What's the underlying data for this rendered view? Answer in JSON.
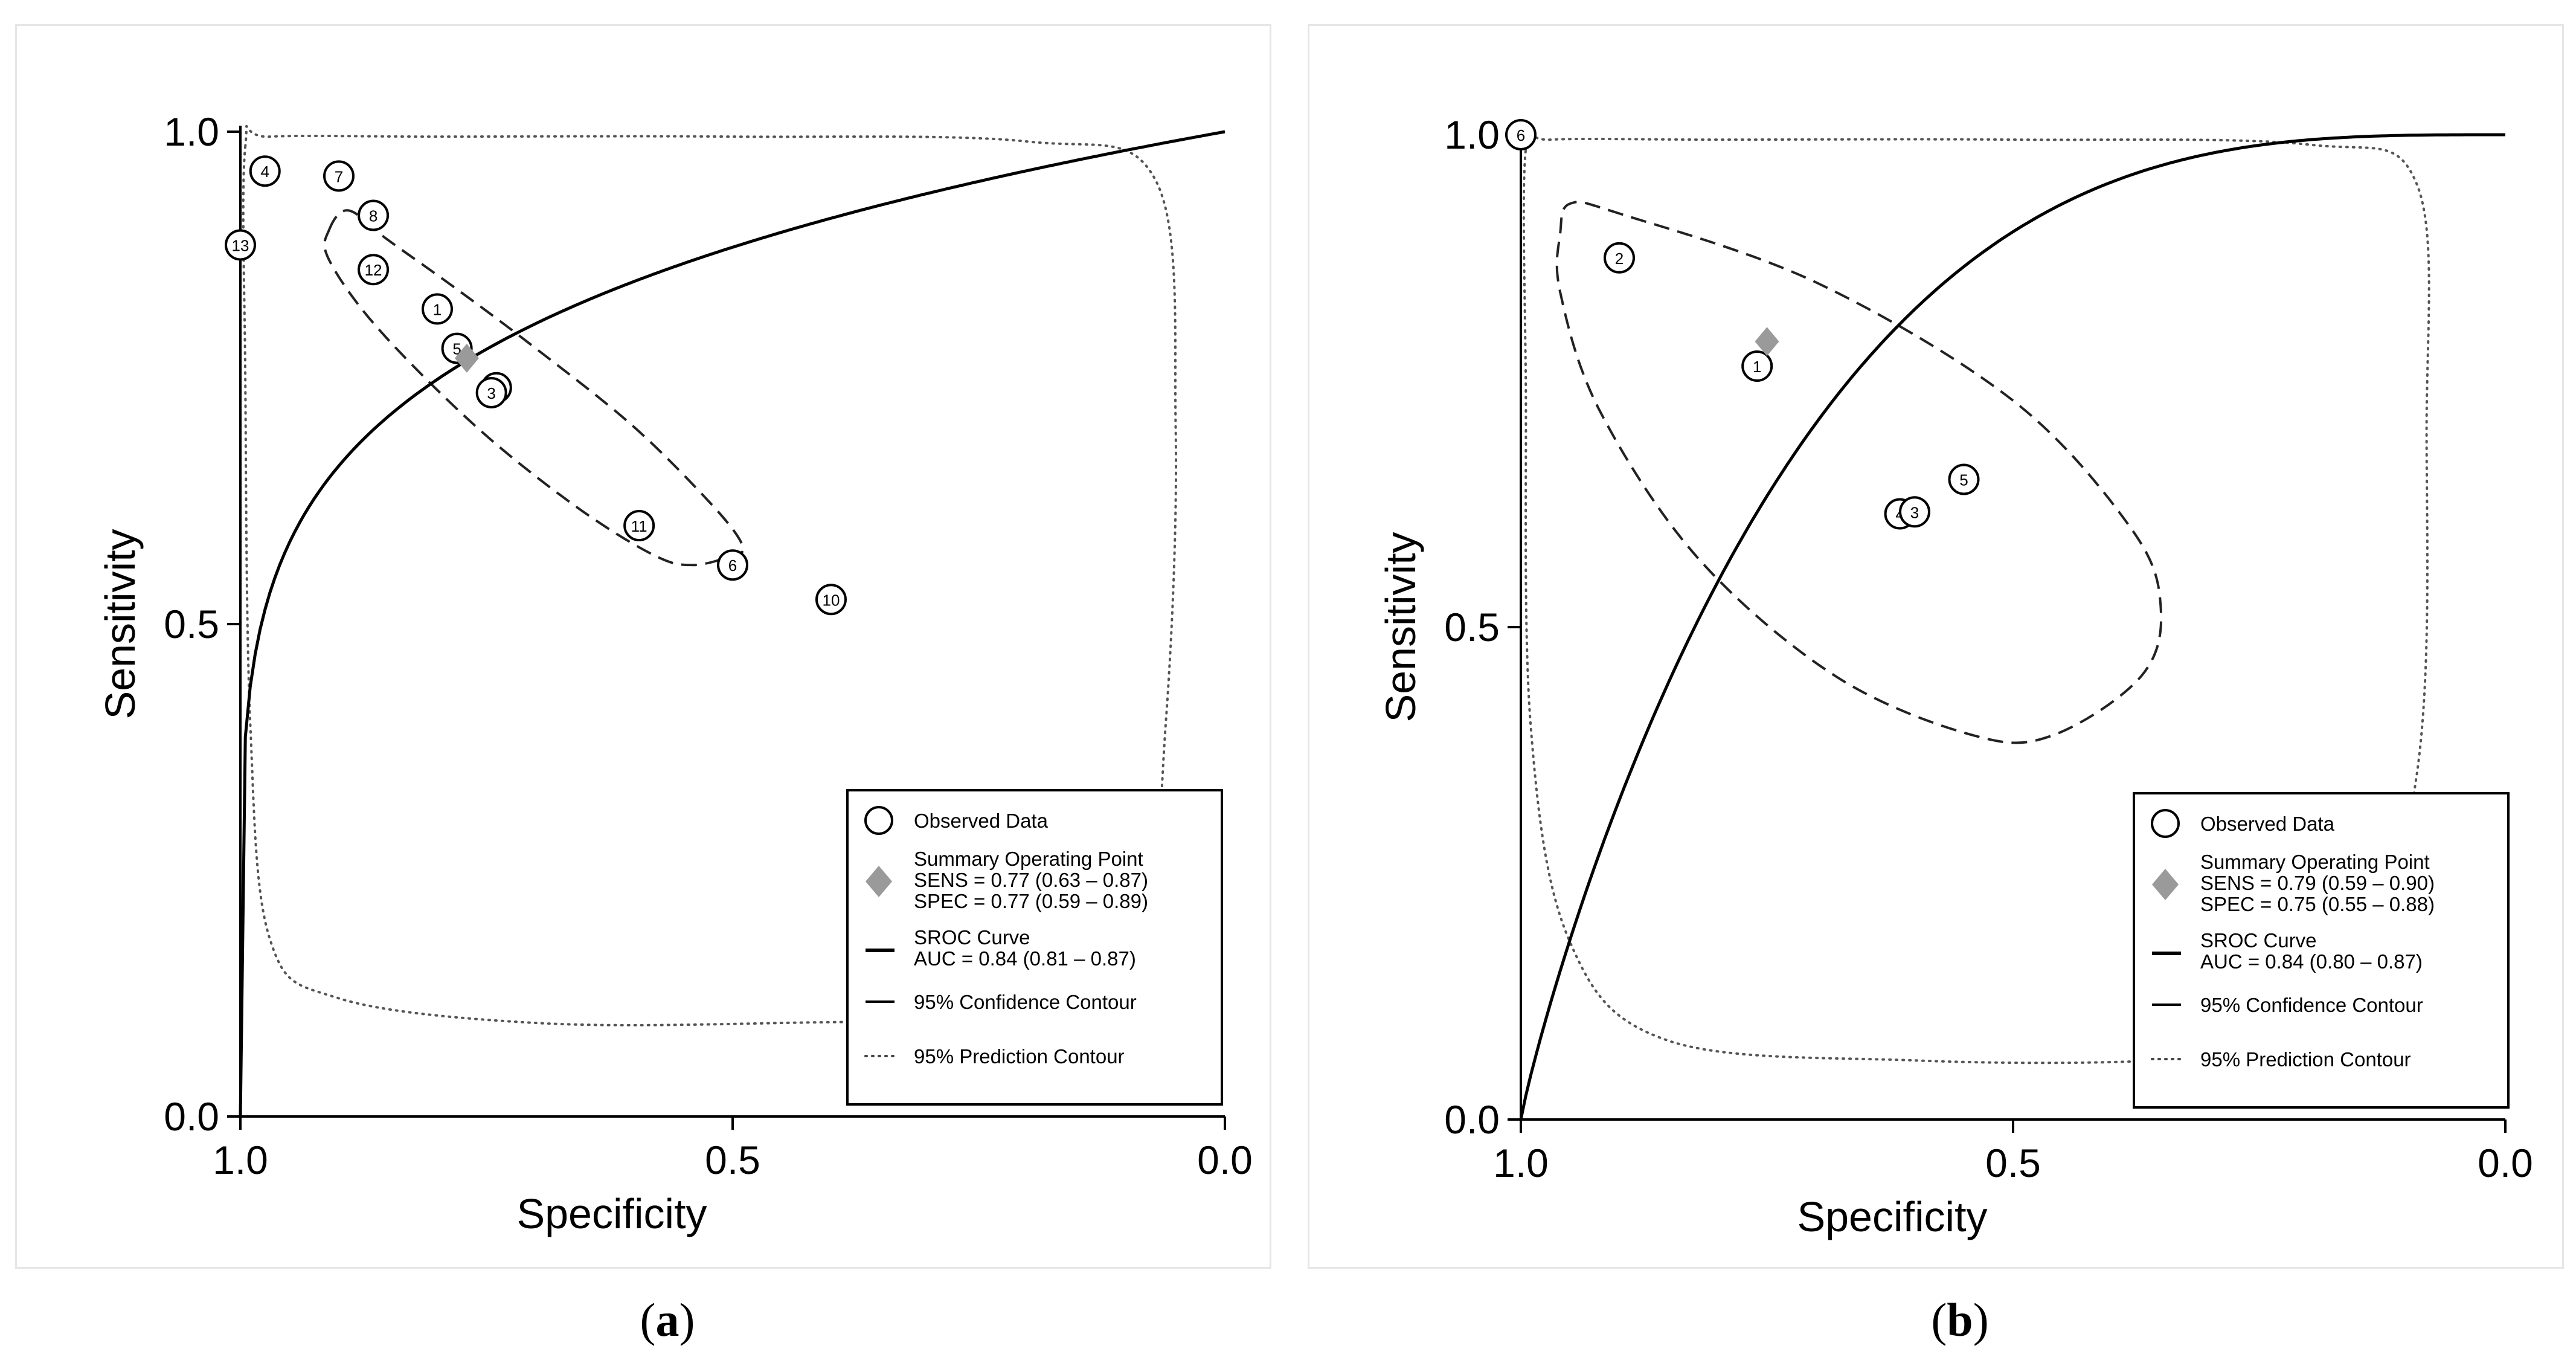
{
  "chart_data": [
    {
      "type": "scatter",
      "panel_label": "a",
      "xlabel": "Specificity",
      "ylabel": "Sensitivity",
      "xlim": [
        1.0,
        0.0
      ],
      "ylim": [
        0.0,
        1.0
      ],
      "x_ticks": [
        "1.0",
        "0.5",
        "0.0"
      ],
      "y_ticks": [
        "0.0",
        "0.5",
        "1.0"
      ],
      "points": [
        {
          "label": "1",
          "spec": 0.8,
          "sens": 0.82
        },
        {
          "label": "2",
          "spec": 0.74,
          "sens": 0.74
        },
        {
          "label": "3",
          "spec": 0.745,
          "sens": 0.735
        },
        {
          "label": "4",
          "spec": 0.975,
          "sens": 0.96
        },
        {
          "label": "5",
          "spec": 0.78,
          "sens": 0.78
        },
        {
          "label": "6",
          "spec": 0.5,
          "sens": 0.56
        },
        {
          "label": "7",
          "spec": 0.9,
          "sens": 0.955
        },
        {
          "label": "8",
          "spec": 0.865,
          "sens": 0.915
        },
        {
          "label": "10",
          "spec": 0.4,
          "sens": 0.525
        },
        {
          "label": "11",
          "spec": 0.595,
          "sens": 0.6
        },
        {
          "label": "12",
          "spec": 0.865,
          "sens": 0.86
        },
        {
          "label": "13",
          "spec": 1.0,
          "sens": 0.885
        }
      ],
      "summary_point": {
        "spec": 0.77,
        "sens": 0.77
      },
      "sroc_auc": 0.84,
      "legend": {
        "observed": "Observed Data",
        "summary_title": "Summary Operating Point",
        "sens": "SENS = 0.77 (0.63 – 0.87)",
        "spec": "SPEC = 0.77 (0.59 – 0.89)",
        "sroc_title": "SROC Curve",
        "auc": "AUC = 0.84 (0.81 – 0.87)",
        "confidence": "95% Confidence Contour",
        "prediction": "95% Prediction Contour"
      },
      "legend_position": "bottom-right",
      "caption": "a"
    },
    {
      "type": "scatter",
      "panel_label": "b",
      "xlabel": "Specificity",
      "ylabel": "Sensitivity",
      "xlim": [
        1.0,
        0.0
      ],
      "ylim": [
        0.0,
        1.0
      ],
      "x_ticks": [
        "1.0",
        "0.5",
        "0.0"
      ],
      "y_ticks": [
        "0.0",
        "0.5",
        "1.0"
      ],
      "points": [
        {
          "label": "6",
          "spec": 1.0,
          "sens": 1.0
        },
        {
          "label": "2",
          "spec": 0.9,
          "sens": 0.875
        },
        {
          "label": "1",
          "spec": 0.76,
          "sens": 0.765
        },
        {
          "label": "4",
          "spec": 0.615,
          "sens": 0.615
        },
        {
          "label": "3",
          "spec": 0.6,
          "sens": 0.617
        },
        {
          "label": "5",
          "spec": 0.55,
          "sens": 0.65
        }
      ],
      "summary_point": {
        "spec": 0.75,
        "sens": 0.79
      },
      "sroc_auc": 0.84,
      "legend": {
        "observed": "Observed Data",
        "summary_title": "Summary Operating Point",
        "sens": "SENS = 0.79 (0.59 – 0.90)",
        "spec": "SPEC = 0.75 (0.55 – 0.88)",
        "sroc_title": "SROC Curve",
        "auc": "AUC = 0.84 (0.80 – 0.87)",
        "confidence": "95% Confidence Contour",
        "prediction": "95% Prediction Contour"
      },
      "legend_position": "bottom-right",
      "caption": "b"
    }
  ],
  "colors": {
    "axis": "#000000",
    "summary": "#9a9a9a",
    "frame": "#e6e6e6"
  }
}
